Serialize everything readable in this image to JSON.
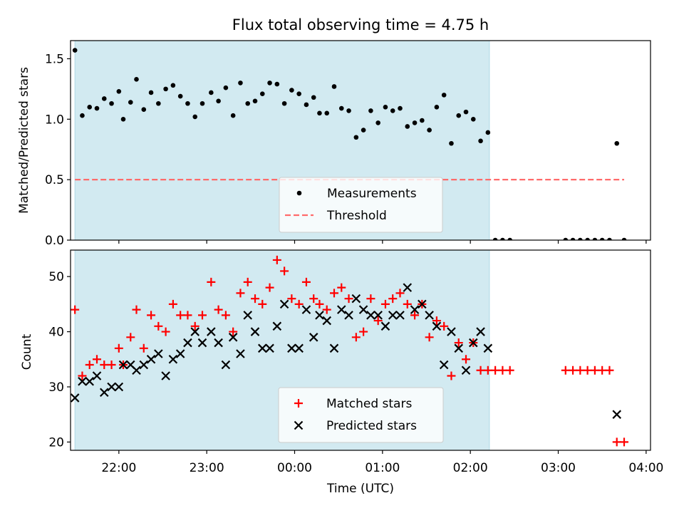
{
  "chart_data": [
    {
      "type": "scatter",
      "title": "Flux total observing time = 4.75 h",
      "ylabel": "Matched/Predicted stars",
      "xlim": [
        "21:27",
        "04:03"
      ],
      "ylim": [
        0,
        1.65
      ],
      "yticks": [
        "0.0",
        "0.5",
        "1.0",
        "1.5"
      ],
      "grid": false,
      "legend_location": "lower center",
      "shaded_interval": [
        "21:30",
        "02:13"
      ],
      "shaded_color": "#add8e6",
      "series": [
        {
          "name": "Measurements",
          "color": "#000000",
          "marker": "dot",
          "points": [
            [
              "21:30",
              1.57
            ],
            [
              "21:35",
              1.03
            ],
            [
              "21:40",
              1.1
            ],
            [
              "21:45",
              1.09
            ],
            [
              "21:50",
              1.17
            ],
            [
              "21:55",
              1.13
            ],
            [
              "22:00",
              1.23
            ],
            [
              "22:03",
              1.0
            ],
            [
              "22:08",
              1.14
            ],
            [
              "22:12",
              1.33
            ],
            [
              "22:17",
              1.08
            ],
            [
              "22:22",
              1.22
            ],
            [
              "22:27",
              1.13
            ],
            [
              "22:32",
              1.25
            ],
            [
              "22:37",
              1.28
            ],
            [
              "22:42",
              1.19
            ],
            [
              "22:47",
              1.13
            ],
            [
              "22:52",
              1.02
            ],
            [
              "22:57",
              1.13
            ],
            [
              "23:03",
              1.22
            ],
            [
              "23:08",
              1.15
            ],
            [
              "23:13",
              1.26
            ],
            [
              "23:18",
              1.03
            ],
            [
              "23:23",
              1.3
            ],
            [
              "23:28",
              1.13
            ],
            [
              "23:33",
              1.15
            ],
            [
              "23:38",
              1.21
            ],
            [
              "23:43",
              1.3
            ],
            [
              "23:48",
              1.29
            ],
            [
              "23:53",
              1.13
            ],
            [
              "23:58",
              1.24
            ],
            [
              "00:03",
              1.21
            ],
            [
              "00:08",
              1.12
            ],
            [
              "00:13",
              1.18
            ],
            [
              "00:17",
              1.05
            ],
            [
              "00:22",
              1.05
            ],
            [
              "00:27",
              1.27
            ],
            [
              "00:32",
              1.09
            ],
            [
              "00:37",
              1.07
            ],
            [
              "00:42",
              0.85
            ],
            [
              "00:47",
              0.91
            ],
            [
              "00:52",
              1.07
            ],
            [
              "00:57",
              0.97
            ],
            [
              "01:02",
              1.1
            ],
            [
              "01:07",
              1.07
            ],
            [
              "01:12",
              1.09
            ],
            [
              "01:17",
              0.94
            ],
            [
              "01:22",
              0.97
            ],
            [
              "01:27",
              0.99
            ],
            [
              "01:32",
              0.91
            ],
            [
              "01:37",
              1.1
            ],
            [
              "01:42",
              1.2
            ],
            [
              "01:47",
              0.8
            ],
            [
              "01:52",
              1.03
            ],
            [
              "01:57",
              1.06
            ],
            [
              "02:02",
              1.0
            ],
            [
              "02:07",
              0.82
            ],
            [
              "02:12",
              0.89
            ],
            [
              "02:17",
              0.0
            ],
            [
              "02:22",
              0.0
            ],
            [
              "02:27",
              0.0
            ],
            [
              "03:05",
              0.0
            ],
            [
              "03:10",
              0.0
            ],
            [
              "03:15",
              0.0
            ],
            [
              "03:20",
              0.0
            ],
            [
              "03:25",
              0.0
            ],
            [
              "03:30",
              0.0
            ],
            [
              "03:35",
              0.0
            ],
            [
              "03:40",
              0.8
            ],
            [
              "03:45",
              0.0
            ]
          ]
        },
        {
          "name": "Threshold",
          "color": "#ff6b6b",
          "marker": "dashed-line",
          "points": [
            [
              "21:30",
              0.5
            ],
            [
              "03:45",
              0.5
            ]
          ]
        }
      ]
    },
    {
      "type": "scatter",
      "xlabel": "Time (UTC)",
      "ylabel": "Count",
      "xlim": [
        "21:27",
        "04:03"
      ],
      "ylim": [
        18.5,
        54.8
      ],
      "xticks": [
        "22:00",
        "23:00",
        "00:00",
        "01:00",
        "02:00",
        "03:00",
        "04:00"
      ],
      "yticks": [
        "20",
        "30",
        "40",
        "50"
      ],
      "grid": false,
      "legend_location": "lower center",
      "shaded_interval": [
        "21:30",
        "02:13"
      ],
      "shaded_color": "#add8e6",
      "series": [
        {
          "name": "Matched stars",
          "color": "#ff0000",
          "marker": "plus",
          "points": [
            [
              "21:30",
              44
            ],
            [
              "21:35",
              32
            ],
            [
              "21:40",
              34
            ],
            [
              "21:45",
              35
            ],
            [
              "21:50",
              34
            ],
            [
              "21:55",
              34
            ],
            [
              "22:00",
              37
            ],
            [
              "22:03",
              34
            ],
            [
              "22:08",
              39
            ],
            [
              "22:12",
              44
            ],
            [
              "22:17",
              37
            ],
            [
              "22:22",
              43
            ],
            [
              "22:27",
              41
            ],
            [
              "22:32",
              40
            ],
            [
              "22:37",
              45
            ],
            [
              "22:42",
              43
            ],
            [
              "22:47",
              43
            ],
            [
              "22:52",
              41
            ],
            [
              "22:57",
              43
            ],
            [
              "23:03",
              49
            ],
            [
              "23:08",
              44
            ],
            [
              "23:13",
              43
            ],
            [
              "23:18",
              40
            ],
            [
              "23:23",
              47
            ],
            [
              "23:28",
              49
            ],
            [
              "23:33",
              46
            ],
            [
              "23:38",
              45
            ],
            [
              "23:43",
              48
            ],
            [
              "23:48",
              53
            ],
            [
              "23:53",
              51
            ],
            [
              "23:58",
              46
            ],
            [
              "00:03",
              45
            ],
            [
              "00:08",
              49
            ],
            [
              "00:13",
              46
            ],
            [
              "00:17",
              45
            ],
            [
              "00:22",
              44
            ],
            [
              "00:27",
              47
            ],
            [
              "00:32",
              48
            ],
            [
              "00:37",
              46
            ],
            [
              "00:42",
              39
            ],
            [
              "00:47",
              40
            ],
            [
              "00:52",
              46
            ],
            [
              "00:57",
              42
            ],
            [
              "01:02",
              45
            ],
            [
              "01:07",
              46
            ],
            [
              "01:12",
              47
            ],
            [
              "01:17",
              45
            ],
            [
              "01:22",
              43
            ],
            [
              "01:27",
              45
            ],
            [
              "01:32",
              39
            ],
            [
              "01:37",
              42
            ],
            [
              "01:42",
              41
            ],
            [
              "01:47",
              32
            ],
            [
              "01:52",
              38
            ],
            [
              "01:57",
              35
            ],
            [
              "02:02",
              38
            ],
            [
              "02:07",
              33
            ],
            [
              "02:12",
              33
            ],
            [
              "02:17",
              33
            ],
            [
              "02:22",
              33
            ],
            [
              "02:27",
              33
            ],
            [
              "03:05",
              33
            ],
            [
              "03:10",
              33
            ],
            [
              "03:15",
              33
            ],
            [
              "03:20",
              33
            ],
            [
              "03:25",
              33
            ],
            [
              "03:30",
              33
            ],
            [
              "03:35",
              33
            ],
            [
              "03:40",
              20
            ],
            [
              "03:45",
              20
            ]
          ]
        },
        {
          "name": "Predicted stars",
          "color": "#000000",
          "marker": "x",
          "points": [
            [
              "21:30",
              28
            ],
            [
              "21:35",
              31
            ],
            [
              "21:40",
              31
            ],
            [
              "21:45",
              32
            ],
            [
              "21:50",
              29
            ],
            [
              "21:55",
              30
            ],
            [
              "22:00",
              30
            ],
            [
              "22:03",
              34
            ],
            [
              "22:08",
              34
            ],
            [
              "22:12",
              33
            ],
            [
              "22:17",
              34
            ],
            [
              "22:22",
              35
            ],
            [
              "22:27",
              36
            ],
            [
              "22:32",
              32
            ],
            [
              "22:37",
              35
            ],
            [
              "22:42",
              36
            ],
            [
              "22:47",
              38
            ],
            [
              "22:52",
              40
            ],
            [
              "22:57",
              38
            ],
            [
              "23:03",
              40
            ],
            [
              "23:08",
              38
            ],
            [
              "23:13",
              34
            ],
            [
              "23:18",
              39
            ],
            [
              "23:23",
              36
            ],
            [
              "23:28",
              43
            ],
            [
              "23:33",
              40
            ],
            [
              "23:38",
              37
            ],
            [
              "23:43",
              37
            ],
            [
              "23:48",
              41
            ],
            [
              "23:53",
              45
            ],
            [
              "23:58",
              37
            ],
            [
              "00:03",
              37
            ],
            [
              "00:08",
              44
            ],
            [
              "00:13",
              39
            ],
            [
              "00:17",
              43
            ],
            [
              "00:22",
              42
            ],
            [
              "00:27",
              37
            ],
            [
              "00:32",
              44
            ],
            [
              "00:37",
              43
            ],
            [
              "00:42",
              46
            ],
            [
              "00:47",
              44
            ],
            [
              "00:52",
              43
            ],
            [
              "00:57",
              43
            ],
            [
              "01:02",
              41
            ],
            [
              "01:07",
              43
            ],
            [
              "01:12",
              43
            ],
            [
              "01:17",
              48
            ],
            [
              "01:22",
              44
            ],
            [
              "01:27",
              45
            ],
            [
              "01:32",
              43
            ],
            [
              "01:37",
              41
            ],
            [
              "01:42",
              34
            ],
            [
              "01:47",
              40
            ],
            [
              "01:52",
              37
            ],
            [
              "01:57",
              33
            ],
            [
              "02:02",
              38
            ],
            [
              "02:07",
              40
            ],
            [
              "02:12",
              37
            ],
            [
              "03:40",
              25
            ]
          ]
        }
      ]
    }
  ]
}
